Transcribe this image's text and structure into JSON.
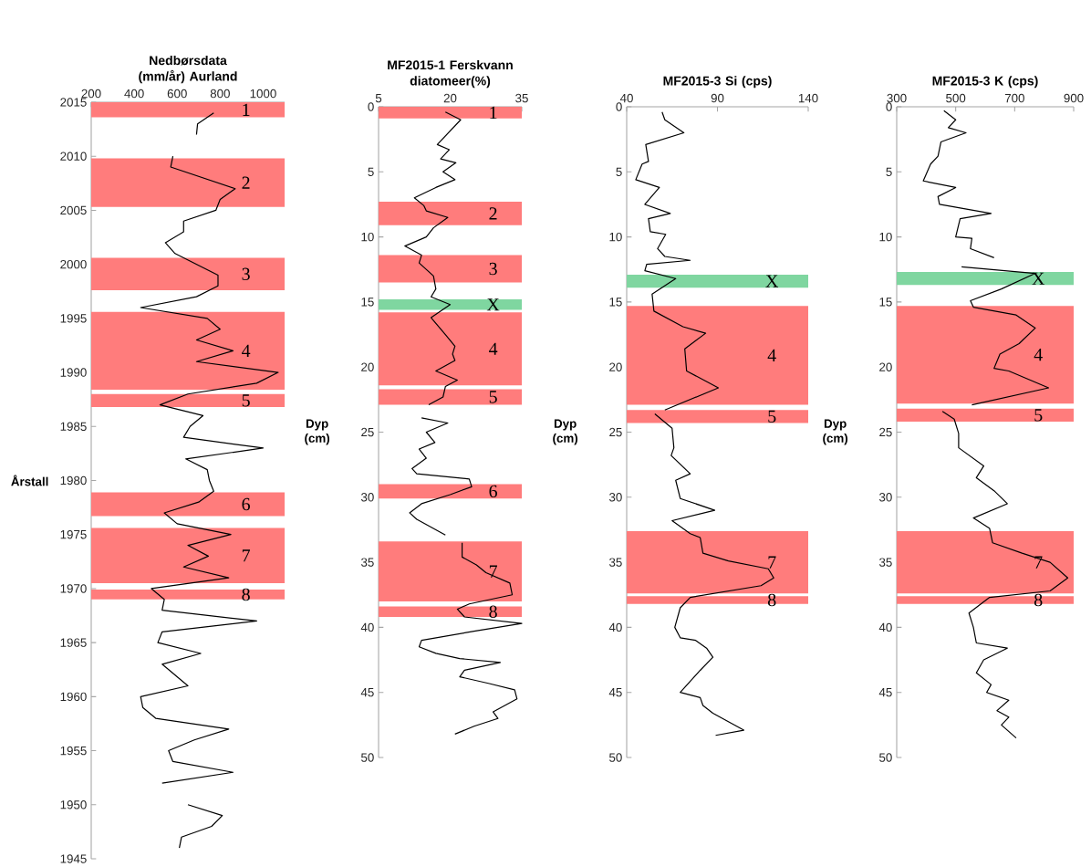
{
  "chart_data": [
    {
      "type": "line",
      "title": "Nedbørsdata (mm/år) Aurland",
      "ylabel": "Årstall",
      "xlim": [
        200,
        1100
      ],
      "xticks": [
        200,
        400,
        600,
        800,
        1000
      ],
      "ylim": [
        1945,
        2015
      ],
      "yticks": [
        1945,
        1950,
        1955,
        1960,
        1965,
        1970,
        1975,
        1980,
        1985,
        1990,
        1995,
        2000,
        2005,
        2010,
        2015
      ],
      "series": [
        {
          "color": "#000000",
          "x": [
            770,
            695,
            690
          ],
          "values": [
            2014,
            2013,
            2012
          ]
        },
        {
          "color": "#000000",
          "x": [
            580,
            570,
            870,
            800,
            780,
            630,
            630,
            545,
            590,
            790,
            790,
            690,
            430,
            740,
            800,
            690,
            860,
            690,
            1070,
            970,
            650,
            520,
            720,
            660,
            630,
            1000,
            640,
            740,
            750,
            770,
            700,
            540,
            600,
            850,
            650,
            745,
            630,
            840,
            480,
            540,
            530,
            970,
            530,
            510,
            710,
            530,
            650,
            430,
            440,
            500,
            840,
            680,
            560,
            580,
            860,
            530
          ],
          "values": [
            2010,
            2009,
            2007,
            2006,
            2005,
            2004,
            2003,
            2002,
            2001,
            1999,
            1998,
            1997,
            1996,
            1995,
            1994,
            1993,
            1992,
            1991,
            1990,
            1989,
            1988,
            1987,
            1986,
            1985,
            1984,
            1983,
            1982,
            1981,
            1980,
            1979,
            1978,
            1977,
            1976,
            1975,
            1974,
            1973,
            1972,
            1971,
            1970,
            1969,
            1968,
            1967,
            1966,
            1965,
            1964,
            1963,
            1961,
            1960,
            1959,
            1958,
            1957,
            1956,
            1955,
            1954,
            1953,
            1952
          ]
        },
        {
          "color": "#000000",
          "x": [
            650,
            810,
            760,
            620,
            610
          ],
          "values": [
            1950,
            1949,
            1948,
            1947,
            1946
          ]
        }
      ],
      "bands": [
        {
          "axis": "y",
          "from": 2013.6,
          "to": 2015,
          "label": "1",
          "color": "#ff7c7c"
        },
        {
          "axis": "y",
          "from": 2005.3,
          "to": 2009.8,
          "label": "2",
          "color": "#ff7c7c"
        },
        {
          "axis": "y",
          "from": 1997.6,
          "to": 2000.6,
          "label": "3",
          "color": "#ff7c7c"
        },
        {
          "axis": "y",
          "from": 1988.4,
          "to": 1995.6,
          "label": "4",
          "color": "#ff7c7c"
        },
        {
          "axis": "y",
          "from": 1986.8,
          "to": 1988.0,
          "label": "5",
          "color": "#ff7c7c"
        },
        {
          "axis": "y",
          "from": 1976.7,
          "to": 1978.9,
          "label": "6",
          "color": "#ff7c7c"
        },
        {
          "axis": "y",
          "from": 1970.5,
          "to": 1975.6,
          "label": "7",
          "color": "#ff7c7c"
        },
        {
          "axis": "y",
          "from": 1969.0,
          "to": 1969.9,
          "label": "8",
          "color": "#ff7c7c"
        }
      ]
    },
    {
      "type": "line",
      "title": "MF2015-1 Ferskvann diatomeer(%)",
      "ylabel": "Dyp (cm)",
      "xlim": [
        5,
        35
      ],
      "xticks": [
        5,
        20,
        35
      ],
      "ylim": [
        50,
        0
      ],
      "yticks": [
        0,
        5,
        10,
        15,
        20,
        25,
        30,
        35,
        40,
        45,
        50
      ],
      "series": [
        {
          "color": "#000000",
          "x": [
            19.0,
            22.2,
            17.3,
            19.8,
            18.0,
            21.2,
            18.5,
            21.0,
            17.0,
            12.5,
            14.5,
            15.0,
            19.5,
            16.5,
            15.0,
            10.5,
            14.0,
            13.5,
            16.5,
            17.0,
            16.0,
            20.0,
            16.0,
            19.0,
            21.0,
            20.5,
            21.0,
            17.0,
            21.5,
            19.0,
            18.5,
            15.5
          ],
          "values": [
            0.4,
            1.0,
            2.9,
            3.3,
            4.0,
            4.3,
            5.0,
            5.6,
            6.2,
            7.0,
            7.6,
            8.0,
            8.5,
            9.3,
            10.0,
            10.7,
            11.4,
            12.0,
            13.0,
            14.0,
            14.6,
            15.2,
            16.2,
            17.5,
            18.4,
            19.0,
            19.5,
            20.3,
            21.0,
            21.5,
            22.3,
            22.9
          ]
        },
        {
          "color": "#000000",
          "x": [
            14.0,
            19.5,
            15.0,
            16.8,
            13.5,
            15.0,
            12.0,
            13.0,
            24.0,
            24.5,
            20.0,
            14.0,
            11.5,
            13.0,
            19.0
          ],
          "values": [
            23.9,
            24.3,
            25.0,
            25.8,
            26.3,
            27.0,
            27.8,
            28.2,
            28.6,
            29.2,
            29.8,
            30.5,
            31.2,
            31.7,
            32.9
          ]
        },
        {
          "color": "#000000",
          "x": [
            22.5,
            22.5,
            25.5,
            27.5,
            32.5,
            33.0,
            24.0,
            21.5,
            23.0,
            35.0,
            25.0,
            14.0,
            13.5,
            17.0,
            22.0,
            30.5,
            23.0,
            22.0,
            28.0,
            33.5,
            34.0,
            29.0,
            30.0,
            25.0,
            21.0
          ],
          "values": [
            33.5,
            34.6,
            35.2,
            35.8,
            36.6,
            37.5,
            38.2,
            38.6,
            39.2,
            39.7,
            40.3,
            41.0,
            41.5,
            42.0,
            42.4,
            42.7,
            43.3,
            43.8,
            44.3,
            44.8,
            45.5,
            46.5,
            47.0,
            47.6,
            48.2
          ]
        }
      ],
      "bands": [
        {
          "axis": "y",
          "from": 0,
          "to": 0.9,
          "label": "1",
          "color": "#ff7c7c"
        },
        {
          "axis": "y",
          "from": 7.3,
          "to": 9.1,
          "label": "2",
          "color": "#ff7c7c"
        },
        {
          "axis": "y",
          "from": 11.4,
          "to": 13.5,
          "label": "3",
          "color": "#ff7c7c"
        },
        {
          "axis": "y",
          "from": 14.8,
          "to": 15.6,
          "label": "X",
          "color": "#7fd6a0"
        },
        {
          "axis": "y",
          "from": 15.8,
          "to": 21.4,
          "label": "4",
          "color": "#ff7c7c"
        },
        {
          "axis": "y",
          "from": 21.7,
          "to": 22.9,
          "label": "5",
          "color": "#ff7c7c"
        },
        {
          "axis": "y",
          "from": 29.0,
          "to": 30.1,
          "label": "6",
          "color": "#ff7c7c"
        },
        {
          "axis": "y",
          "from": 33.4,
          "to": 38.0,
          "label": "7",
          "color": "#ff7c7c"
        },
        {
          "axis": "y",
          "from": 38.4,
          "to": 39.2,
          "label": "8",
          "color": "#ff7c7c"
        }
      ]
    },
    {
      "type": "line",
      "title": "MF2015-3 Si (cps)",
      "ylabel": "Dyp (cm)",
      "xlim": [
        40,
        140
      ],
      "xticks": [
        40,
        90,
        140
      ],
      "ylim": [
        50,
        0
      ],
      "yticks": [
        0,
        5,
        10,
        15,
        20,
        25,
        30,
        35,
        40,
        45,
        50
      ],
      "series": [
        {
          "color": "#000000",
          "x": [
            59.5,
            61,
            71.5,
            50.5,
            52,
            48.5,
            45,
            58,
            50,
            64,
            52,
            53,
            61.5,
            57,
            61,
            75,
            51,
            50,
            67,
            54,
            55,
            71,
            83.5,
            72,
            73,
            90.5,
            61
          ],
          "values": [
            0.4,
            1.0,
            2.0,
            2.9,
            4.2,
            4.4,
            5.6,
            6.2,
            7.5,
            8.2,
            8.6,
            9.6,
            9.8,
            10.9,
            11.5,
            11.8,
            12.1,
            12.6,
            13.2,
            14.4,
            15.7,
            16.9,
            17.4,
            18.6,
            20.3,
            21.6,
            23.3
          ]
        },
        {
          "color": "#000000",
          "x": [
            55.5,
            65,
            66,
            64.5,
            75,
            67,
            69.5,
            88.5,
            65,
            75,
            80.5,
            82,
            96,
            118,
            121,
            114,
            75,
            69.5,
            66.5,
            69.5,
            78,
            84,
            87.5,
            80.5,
            69.5,
            80.5,
            82,
            87.5,
            104.5,
            89
          ],
          "values": [
            23.6,
            24.7,
            26.2,
            26.8,
            28.2,
            28.7,
            30.1,
            31.0,
            31.8,
            32.8,
            33.1,
            34.3,
            34.9,
            35.5,
            36.2,
            36.8,
            37.7,
            38.5,
            40.0,
            40.8,
            41.0,
            41.6,
            42.3,
            43.3,
            45.0,
            45.4,
            46.0,
            46.6,
            47.9,
            48.3
          ]
        }
      ],
      "bands": [
        {
          "axis": "y",
          "from": 12.9,
          "to": 13.9,
          "label": "X",
          "color": "#7fd6a0"
        },
        {
          "axis": "y",
          "from": 15.3,
          "to": 22.9,
          "label": "4",
          "color": "#ff7c7c"
        },
        {
          "axis": "y",
          "from": 23.3,
          "to": 24.3,
          "label": "5",
          "color": "#ff7c7c"
        },
        {
          "axis": "y",
          "from": 32.6,
          "to": 37.4,
          "label": "7",
          "color": "#ff7c7c"
        },
        {
          "axis": "y",
          "from": 37.6,
          "to": 38.2,
          "label": "8",
          "color": "#ff7c7c"
        }
      ]
    },
    {
      "type": "line",
      "title": "MF2015-3 K (cps)",
      "ylabel": "Dyp (cm)",
      "xlim": [
        300,
        900
      ],
      "xticks": [
        300,
        500,
        700,
        900
      ],
      "ylim": [
        50,
        0
      ],
      "yticks": [
        0,
        5,
        10,
        15,
        20,
        25,
        30,
        35,
        40,
        45,
        50
      ],
      "series": [
        {
          "color": "#000000",
          "x": [
            460,
            500,
            475,
            535,
            450,
            440,
            415,
            390,
            500,
            440,
            445,
            620,
            515,
            500,
            555,
            550,
            630
          ],
          "values": [
            0.3,
            1.0,
            1.6,
            2.0,
            2.7,
            3.8,
            4.4,
            5.7,
            6.2,
            6.9,
            7.5,
            8.2,
            8.6,
            10.0,
            10.1,
            10.9,
            11.6
          ]
        },
        {
          "color": "#000000",
          "x": [
            520,
            770,
            655,
            550,
            560,
            705,
            770,
            715,
            650,
            630,
            680,
            815,
            555
          ],
          "values": [
            12.3,
            12.8,
            14.0,
            14.9,
            15.4,
            16.0,
            17.0,
            18.2,
            19.0,
            20.1,
            20.3,
            21.6,
            22.9
          ]
        },
        {
          "color": "#000000",
          "x": [
            455,
            495,
            510,
            510,
            595,
            570,
            630,
            675,
            560,
            615,
            625,
            725,
            820,
            880,
            820,
            615,
            545,
            560,
            570,
            675,
            595,
            570,
            620,
            605,
            680,
            640,
            680,
            655,
            705
          ],
          "values": [
            23.4,
            24.0,
            25.1,
            26.2,
            27.6,
            28.5,
            29.5,
            30.5,
            31.6,
            32.4,
            33.5,
            34.3,
            35.0,
            36.2,
            37.2,
            37.7,
            38.9,
            40.0,
            41.2,
            41.6,
            42.5,
            43.5,
            44.4,
            45.0,
            45.6,
            46.4,
            46.9,
            47.5,
            48.5
          ]
        }
      ],
      "bands": [
        {
          "axis": "y",
          "from": 12.7,
          "to": 13.7,
          "label": "X",
          "color": "#7fd6a0"
        },
        {
          "axis": "y",
          "from": 15.3,
          "to": 22.8,
          "label": "4",
          "color": "#ff7c7c"
        },
        {
          "axis": "y",
          "from": 23.2,
          "to": 24.2,
          "label": "5",
          "color": "#ff7c7c"
        },
        {
          "axis": "y",
          "from": 32.6,
          "to": 37.4,
          "label": "7",
          "color": "#ff7c7c"
        },
        {
          "axis": "y",
          "from": 37.6,
          "to": 38.2,
          "label": "8",
          "color": "#ff7c7c"
        }
      ]
    }
  ]
}
